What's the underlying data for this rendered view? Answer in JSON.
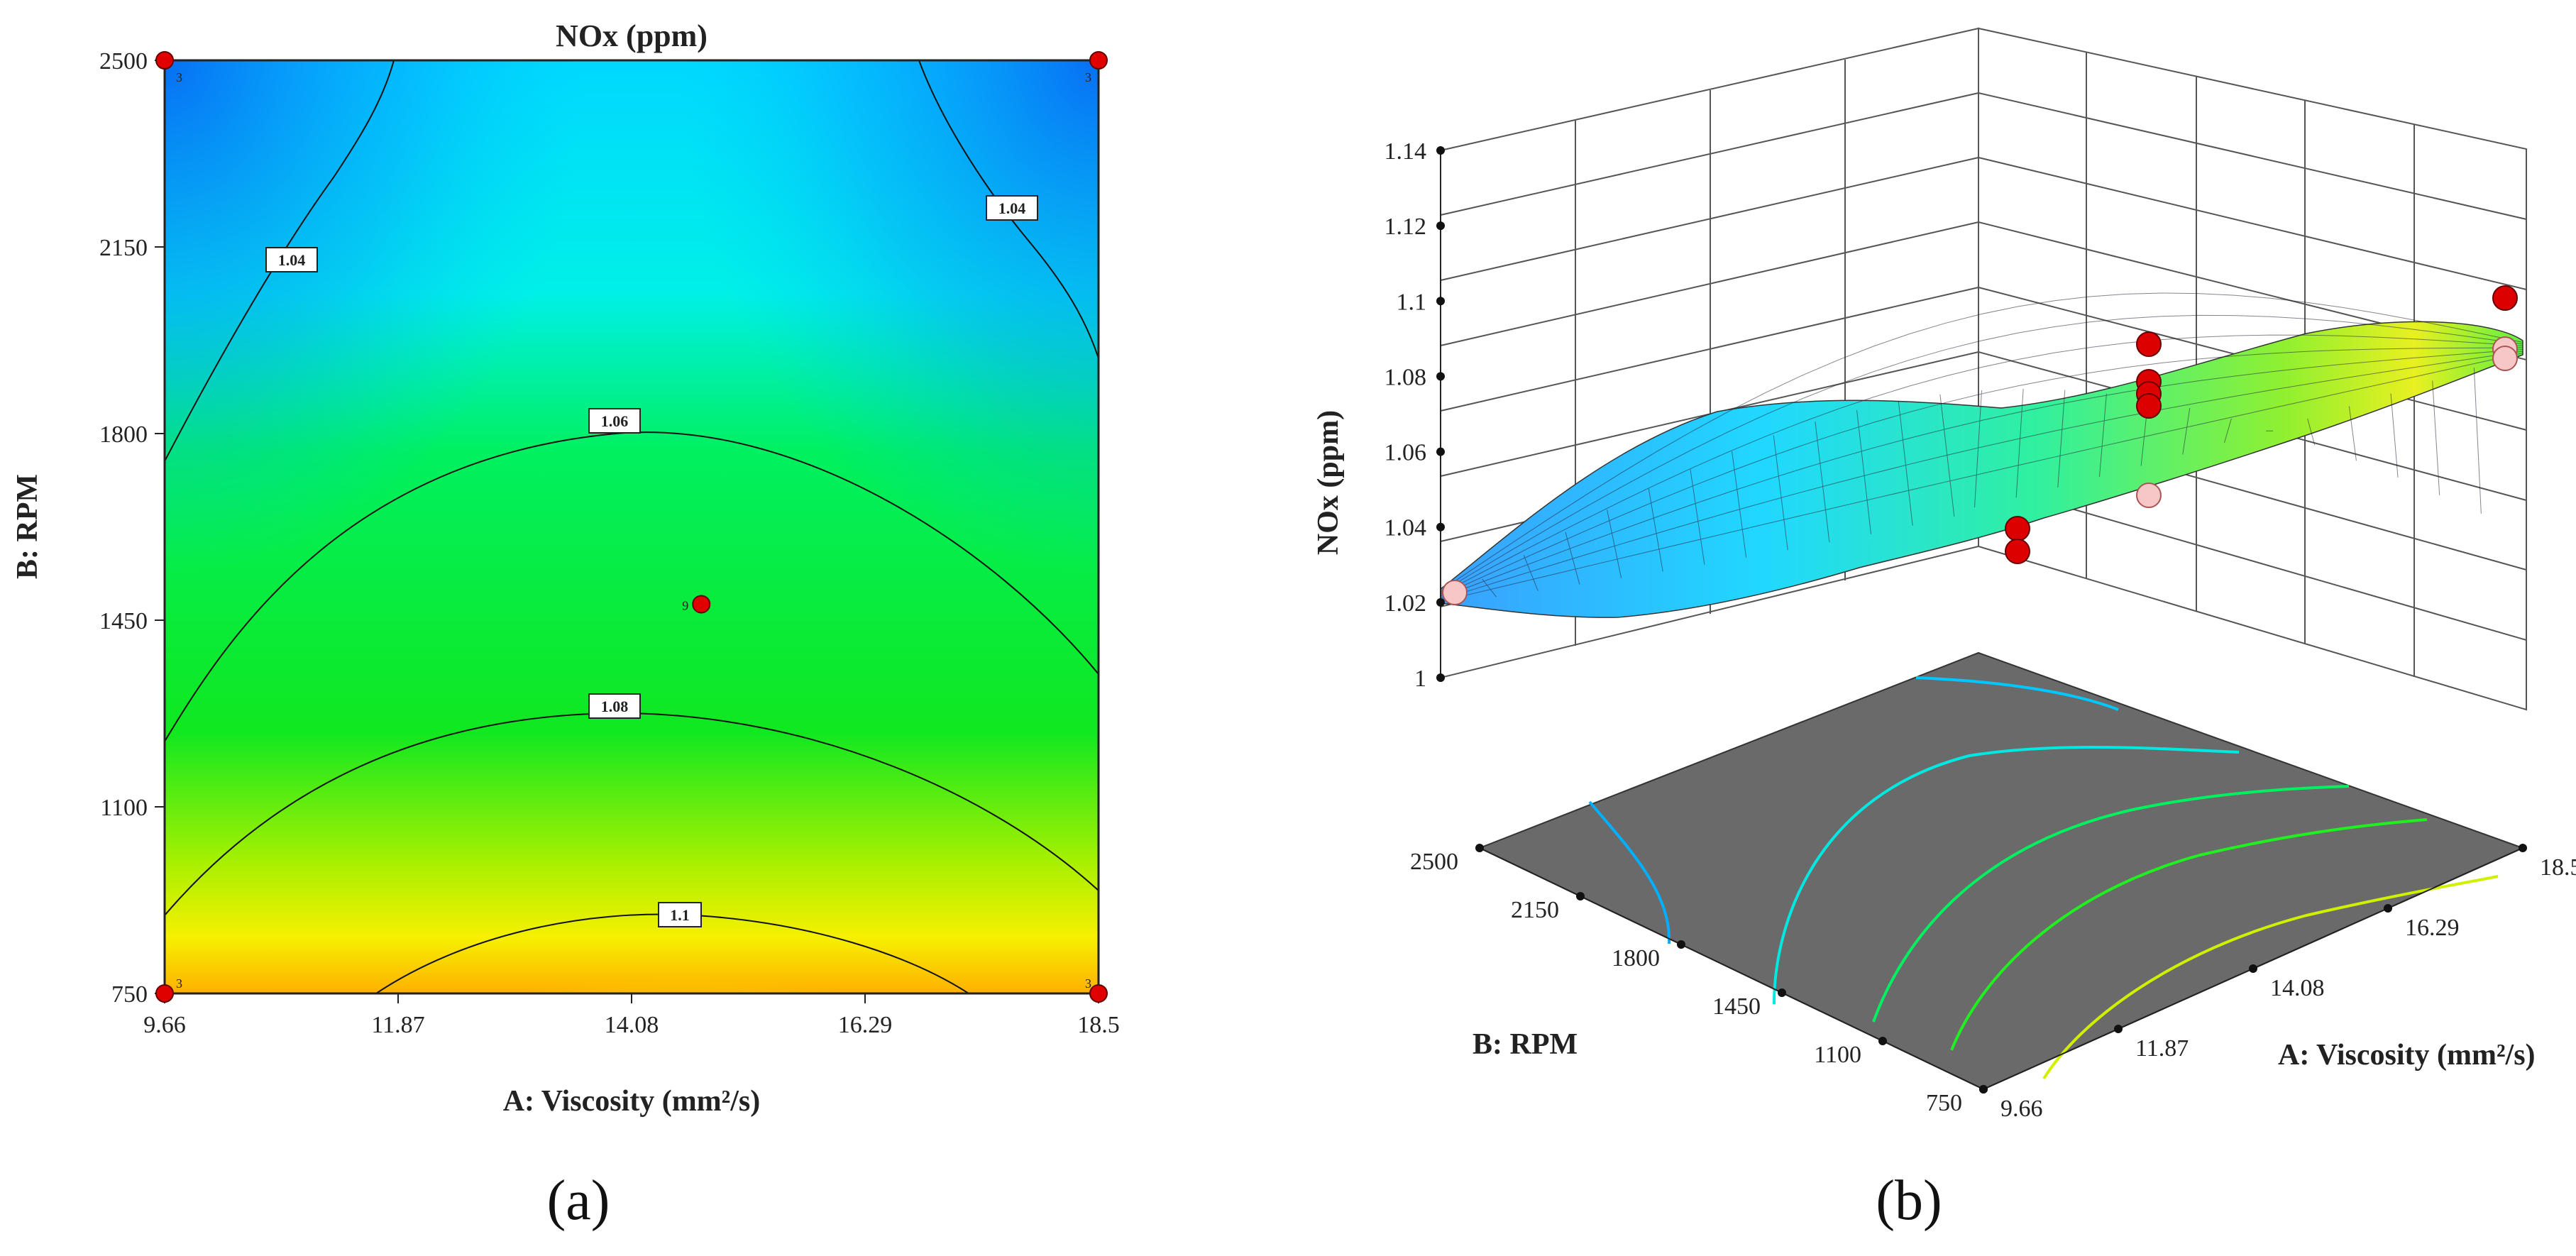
{
  "chart_data": [
    {
      "type": "contour",
      "panel_label": "(a)",
      "title": "NOx (ppm)",
      "xlabel": "A: Viscosity (mm²/s)",
      "ylabel": "B: RPM",
      "xlim": [
        9.66,
        18.5
      ],
      "ylim": [
        750,
        2500
      ],
      "xticks": [
        "9.66",
        "11.87",
        "14.08",
        "16.29",
        "18.5"
      ],
      "yticks": [
        "750",
        "1100",
        "1450",
        "1800",
        "2150",
        "2500"
      ],
      "contour_levels": [
        {
          "label": "1.04",
          "value": 1.04
        },
        {
          "label": "1.04",
          "value": 1.04
        },
        {
          "label": "1.06",
          "value": 1.06
        },
        {
          "label": "1.08",
          "value": 1.08
        },
        {
          "label": "1.1",
          "value": 1.1
        }
      ],
      "design_points": [
        {
          "x": 9.66,
          "y": 2500,
          "count": "3"
        },
        {
          "x": 18.5,
          "y": 2500,
          "count": "3"
        },
        {
          "x": 9.66,
          "y": 750,
          "count": "3"
        },
        {
          "x": 18.5,
          "y": 750,
          "count": "3"
        },
        {
          "x": 14.74,
          "y": 1480,
          "count": "9"
        }
      ],
      "colors": {
        "low": "#0a50ff",
        "mid": "#00ff20",
        "high": "#ff8c00",
        "point": "#e00000"
      }
    },
    {
      "type": "surface3d",
      "panel_label": "(b)",
      "zlabel": "NOx (ppm)",
      "xlabel": "A: Viscosity (mm²/s)",
      "ylabel": "B: RPM",
      "zticks": [
        "1",
        "1.02",
        "1.04",
        "1.06",
        "1.08",
        "1.1",
        "1.12",
        "1.14"
      ],
      "xticks": [
        "9.66",
        "11.87",
        "14.08",
        "16.29",
        "18.5"
      ],
      "yticks": [
        "750",
        "1100",
        "1450",
        "1800",
        "2150",
        "2500"
      ],
      "zlim": [
        1,
        1.14
      ],
      "colors": {
        "floor": "#6a6a6a",
        "point_above": "#dd0000",
        "point_below": "#f7c6c6"
      }
    }
  ]
}
